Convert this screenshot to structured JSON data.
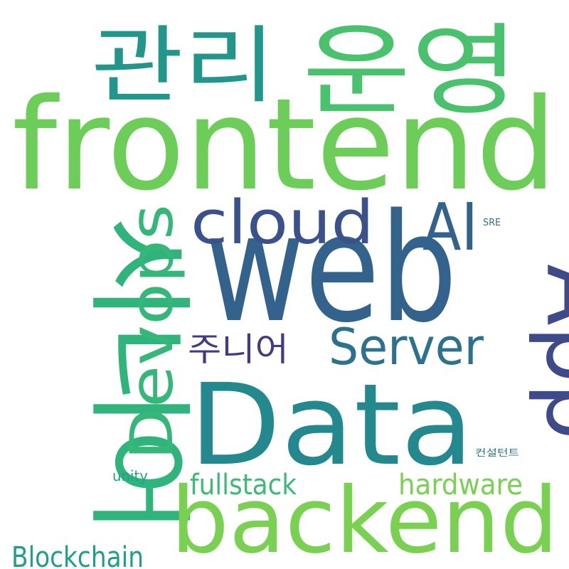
{
  "words": [
    {
      "text": "frontend",
      "color": "#6cce59"
    },
    {
      "text": "관리",
      "color": "#22968b"
    },
    {
      "text": "운영",
      "color": "#49c16d"
    },
    {
      "text": "web",
      "color": "#33628d"
    },
    {
      "text": "cloud",
      "color": "#3b518b"
    },
    {
      "text": "AI",
      "color": "#33628d"
    },
    {
      "text": "App",
      "color": "#3e4a89"
    },
    {
      "text": "SRE",
      "color": "#2e6f8e"
    },
    {
      "text": "시니어",
      "color": "#2fb47c"
    },
    {
      "text": "Devops",
      "color": "#35b779"
    },
    {
      "text": "주니어",
      "color": "#443a83"
    },
    {
      "text": "Server",
      "color": "#2c728e"
    },
    {
      "text": "Data",
      "color": "#23898e"
    },
    {
      "text": "컨설턴트",
      "color": "#2a788e"
    },
    {
      "text": "unity",
      "color": "#20a386"
    },
    {
      "text": "fullstack",
      "color": "#3bbb75"
    },
    {
      "text": "hardware",
      "color": "#7ad151"
    },
    {
      "text": "backend",
      "color": "#7ad151"
    },
    {
      "text": "Blockchain",
      "color": "#1f9e89"
    }
  ]
}
